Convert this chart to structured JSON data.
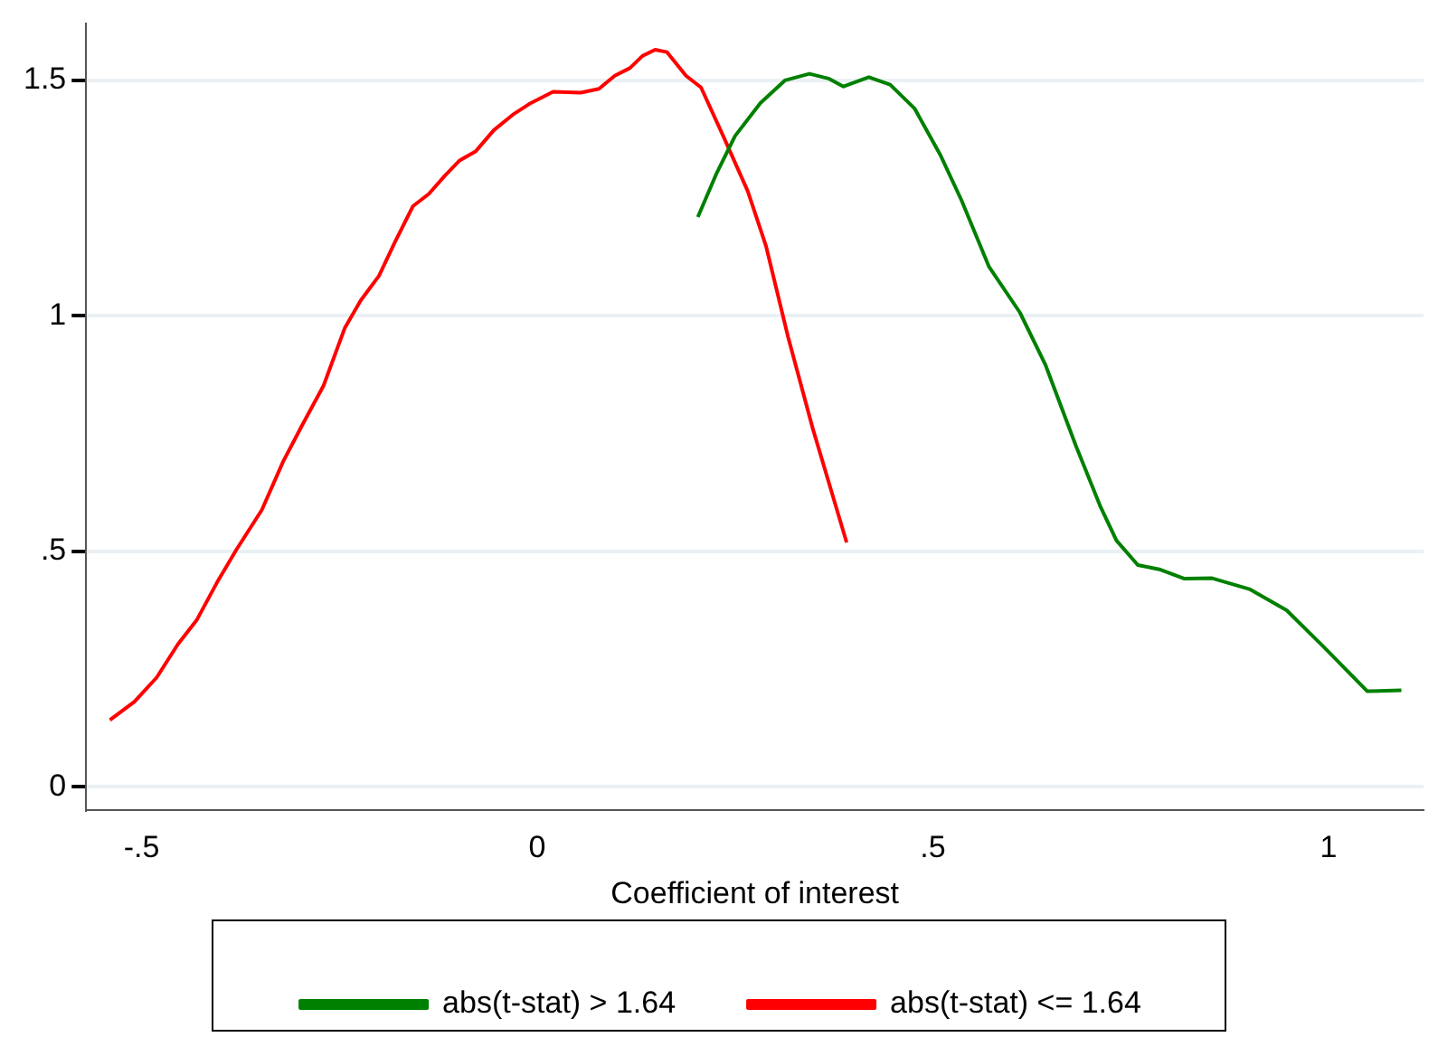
{
  "chart_data": {
    "type": "line",
    "xlabel": "Coefficient of interest",
    "xlim": [
      -0.57,
      1.12
    ],
    "ylim": [
      -0.05,
      1.62
    ],
    "xticks": [
      {
        "value": -0.5,
        "label": "-.5"
      },
      0,
      {
        "value": 0.5,
        "label": ".5"
      },
      1
    ],
    "yticks": [
      0,
      {
        "value": 0.5,
        "label": ".5"
      },
      1,
      {
        "value": 1.5,
        "label": "1.5"
      }
    ],
    "grid": "y",
    "legend": "bottom",
    "marker": "none",
    "line_style": "solid",
    "series": [
      {
        "name": "abs(t-stat) > 1.64",
        "color": "#008000",
        "x": [
          0.203,
          0.227,
          0.25,
          0.282,
          0.313,
          0.344,
          0.368,
          0.387,
          0.419,
          0.446,
          0.477,
          0.509,
          0.536,
          0.571,
          0.61,
          0.642,
          0.681,
          0.712,
          0.732,
          0.759,
          0.786,
          0.818,
          0.853,
          0.9,
          0.947,
          0.994,
          1.049,
          1.092
        ],
        "values": [
          1.21,
          1.304,
          1.382,
          1.452,
          1.5,
          1.514,
          1.504,
          1.487,
          1.507,
          1.491,
          1.44,
          1.343,
          1.246,
          1.104,
          1.007,
          0.897,
          0.723,
          0.594,
          0.523,
          0.471,
          0.462,
          0.442,
          0.443,
          0.42,
          0.375,
          0.297,
          0.203,
          0.205
        ]
      },
      {
        "name": "abs(t-stat) <= 1.64",
        "color": "#ff0000",
        "x": [
          -0.54,
          -0.509,
          -0.481,
          -0.454,
          -0.43,
          -0.403,
          -0.38,
          -0.348,
          -0.321,
          -0.297,
          -0.27,
          -0.243,
          -0.223,
          -0.2,
          -0.18,
          -0.157,
          -0.137,
          -0.117,
          -0.098,
          -0.078,
          -0.055,
          -0.031,
          -0.008,
          0.02,
          0.055,
          0.078,
          0.098,
          0.117,
          0.133,
          0.149,
          0.164,
          0.188,
          0.207,
          0.235,
          0.266,
          0.289,
          0.317,
          0.348,
          0.391
        ],
        "values": [
          0.142,
          0.181,
          0.232,
          0.303,
          0.355,
          0.439,
          0.504,
          0.588,
          0.691,
          0.768,
          0.852,
          0.975,
          1.033,
          1.085,
          1.156,
          1.233,
          1.259,
          1.297,
          1.33,
          1.349,
          1.394,
          1.427,
          1.452,
          1.476,
          1.474,
          1.482,
          1.51,
          1.526,
          1.552,
          1.565,
          1.56,
          1.51,
          1.485,
          1.382,
          1.265,
          1.149,
          0.955,
          0.762,
          0.519
        ]
      }
    ]
  }
}
